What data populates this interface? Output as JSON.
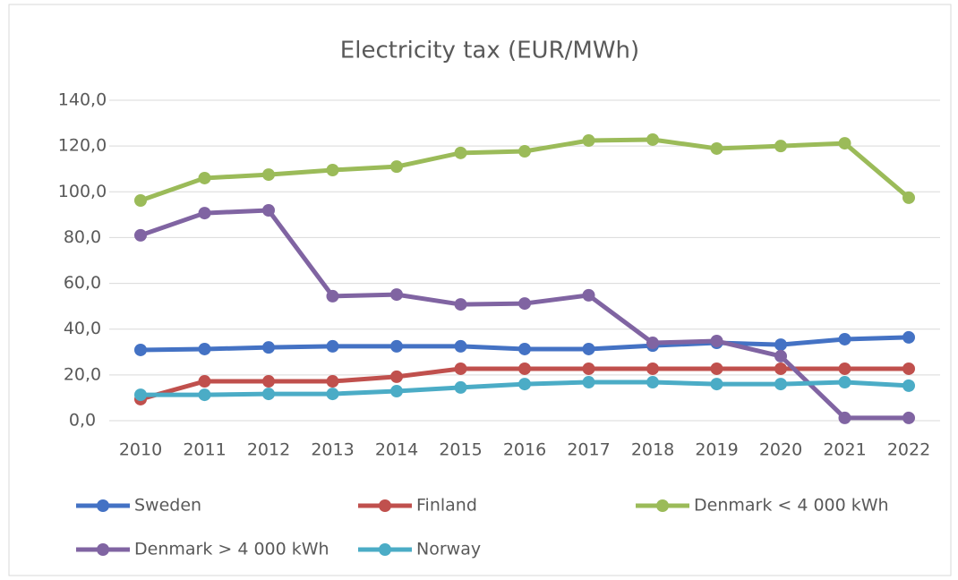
{
  "chart_data": {
    "type": "line",
    "title": "Electricity tax (EUR/MWh)",
    "categories": [
      "2010",
      "2011",
      "2012",
      "2013",
      "2014",
      "2015",
      "2016",
      "2017",
      "2018",
      "2019",
      "2020",
      "2021",
      "2022"
    ],
    "series": [
      {
        "name": "Sweden",
        "color": "#4472c4",
        "values": [
          30.9,
          31.3,
          32.0,
          32.5,
          32.5,
          32.5,
          31.3,
          31.3,
          32.8,
          34.0,
          33.2,
          35.6,
          36.4
        ]
      },
      {
        "name": "Finland",
        "color": "#c0504d",
        "values": [
          9.4,
          17.2,
          17.2,
          17.2,
          19.2,
          22.7,
          22.7,
          22.7,
          22.7,
          22.7,
          22.7,
          22.7,
          22.7
        ]
      },
      {
        "name": "Denmark < 4 000 kWh",
        "color": "#9bbb59",
        "values": [
          96.2,
          106.0,
          107.5,
          109.5,
          111.0,
          117.0,
          117.7,
          122.4,
          122.8,
          118.9,
          120.0,
          121.2,
          97.4
        ]
      },
      {
        "name": "Denmark > 4 000 kWh",
        "color": "#8064a2",
        "values": [
          81.0,
          90.7,
          91.9,
          54.4,
          55.1,
          50.8,
          51.2,
          54.8,
          34.0,
          34.8,
          28.2,
          1.2,
          1.2
        ]
      },
      {
        "name": "Norway",
        "color": "#4bacc6",
        "values": [
          11.3,
          11.3,
          11.7,
          11.7,
          12.9,
          14.5,
          16.0,
          16.8,
          16.8,
          16.0,
          16.0,
          16.8,
          15.3
        ]
      }
    ],
    "ylim": [
      0,
      140
    ],
    "yticks": [
      {
        "value": 0,
        "label": "0,0"
      },
      {
        "value": 20,
        "label": "20,0"
      },
      {
        "value": 40,
        "label": "40,0"
      },
      {
        "value": 60,
        "label": "60,0"
      },
      {
        "value": 80,
        "label": "80,0"
      },
      {
        "value": 100,
        "label": "100,0"
      },
      {
        "value": 120,
        "label": "120,0"
      },
      {
        "value": 140,
        "label": "140,0"
      }
    ],
    "grid": true
  }
}
